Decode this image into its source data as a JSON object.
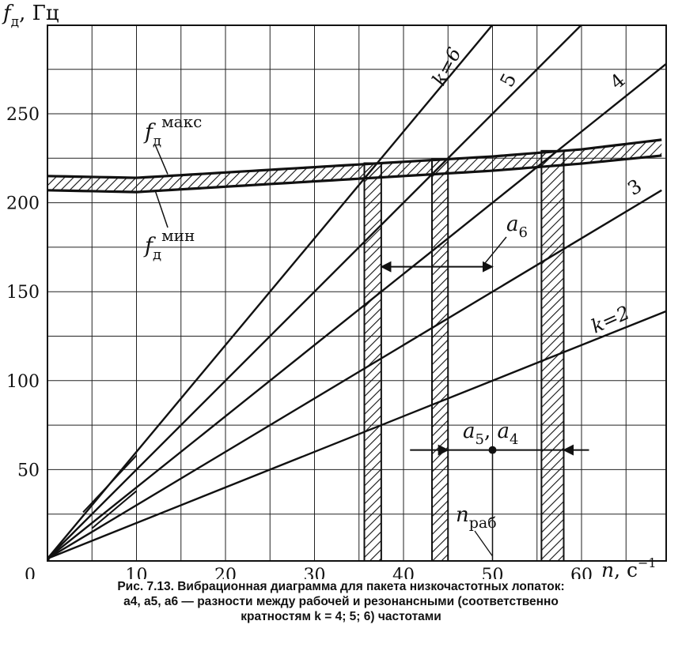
{
  "chart_data": {
    "type": "line",
    "ylabel": {
      "base": "f",
      "sub": "д",
      "unit": ", Гц"
    },
    "xlabel": {
      "base": "n",
      "unit": ", с",
      "sup": "−1"
    },
    "xlim": [
      0,
      70
    ],
    "ylim": [
      0,
      295
    ],
    "x_ticks": [
      0,
      10,
      20,
      30,
      40,
      50,
      60
    ],
    "y_ticks": [
      50,
      100,
      150,
      200,
      250
    ],
    "grid": true,
    "series": [
      {
        "name": "k=2",
        "k": 2,
        "x": [
          0,
          70
        ],
        "y": [
          0,
          140
        ]
      },
      {
        "name": "3",
        "k": 3,
        "x": [
          0,
          69
        ],
        "y": [
          0,
          207
        ]
      },
      {
        "name": "4",
        "k": 4,
        "x": [
          0,
          69.5
        ],
        "y": [
          0,
          278
        ]
      },
      {
        "name": "5",
        "k": 5,
        "x": [
          0,
          60.5
        ],
        "y": [
          0,
          302.5
        ]
      },
      {
        "name": "k=6",
        "k": 6,
        "x": [
          0,
          50.5
        ],
        "y": [
          0,
          303
        ]
      }
    ],
    "band": {
      "upper_name": {
        "base": "f",
        "sub": "д",
        "sup": "макс"
      },
      "lower_name": {
        "base": "f",
        "sub": "д",
        "sup": "мин"
      },
      "x": [
        0,
        10,
        20,
        30,
        40,
        50,
        60,
        70
      ],
      "upper": [
        215,
        214,
        217,
        220,
        223,
        226,
        230,
        236
      ],
      "lower": [
        207,
        206,
        209,
        212,
        215,
        218,
        222,
        227
      ]
    },
    "resonance_zones": [
      {
        "k": 6,
        "x_from": 35.6,
        "x_to": 37.5
      },
      {
        "k": 5,
        "x_from": 43.2,
        "x_to": 45.0
      },
      {
        "k": 4,
        "x_from": 55.5,
        "x_to": 58.0
      }
    ],
    "operating_speed": {
      "label": {
        "base": "n",
        "sub": "раб"
      },
      "x": 50,
      "y": 61
    },
    "annotations": [
      {
        "label": {
          "base": "a",
          "sub": "6"
        },
        "x_from": 37.5,
        "x_to": 50,
        "y": 164
      },
      {
        "label": {
          "base": "a",
          "sub": "5",
          "sep": ", ",
          "base2": "a",
          "sub2": "4"
        },
        "x_from": 45,
        "x_to": 58,
        "y": 61
      }
    ]
  },
  "caption": {
    "line1": "Рис. 7.13. Вибрационная диаграмма для пакета низкочастотных лопаток:",
    "line2": "а4, а5, а6 — разности между рабочей и резонансными (соответственно",
    "line3": "кратностям k = 4; 5; 6) частотами"
  }
}
